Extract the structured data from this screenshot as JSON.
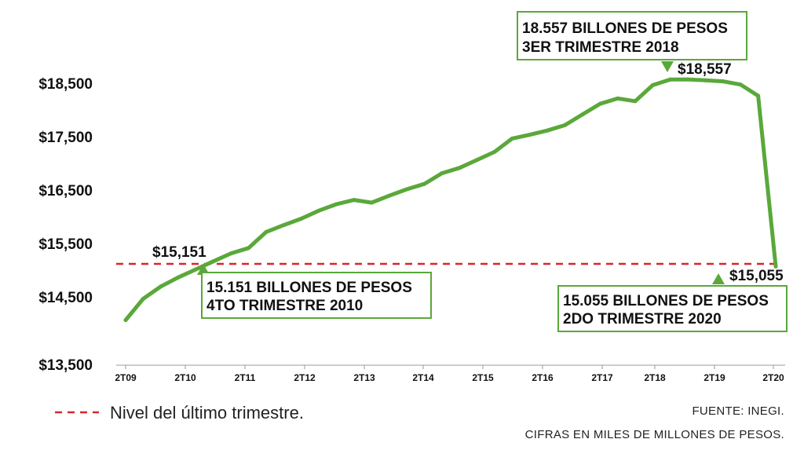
{
  "chart_data": {
    "type": "line",
    "colors": {
      "series": "#5aa83a",
      "reference_line": "#d9262b",
      "box_border": "#5aa83a"
    },
    "y_ticks": [
      "$18,500",
      "$17,500",
      "$16,500",
      "$15,500",
      "$14,500",
      "$13,500"
    ],
    "y_tick_values": [
      18500,
      17500,
      16500,
      15500,
      14500,
      13500
    ],
    "ylim": [
      13500,
      18500
    ],
    "x_ticks": [
      "2T09",
      "2T10",
      "2T11",
      "2T12",
      "2T13",
      "2T14",
      "2T15",
      "2T16",
      "2T17",
      "2T18",
      "2T19",
      "2T20"
    ],
    "grid": false,
    "series": [
      {
        "values": [
          14050,
          14450,
          14680,
          14850,
          15000,
          15151,
          15300,
          15400,
          15700,
          15830,
          15950,
          16100,
          16220,
          16300,
          16250,
          16380,
          16500,
          16600,
          16800,
          16900,
          17050,
          17200,
          17450,
          17520,
          17600,
          17700,
          17900,
          18100,
          18200,
          18150,
          18450,
          18555,
          18557,
          18540,
          18520,
          18460,
          18250,
          15055
        ]
      }
    ],
    "reference_line": {
      "value": 15055,
      "legend": "Nivel del último trimestre."
    },
    "annotations": [
      {
        "value_label": "$15,151",
        "line1": "15.151 BILLONES DE PESOS",
        "line2": "4TO TRIMESTRE 2010"
      },
      {
        "value_label": "$18,557",
        "line1": "18.557 BILLONES DE PESOS",
        "line2": "3ER TRIMESTRE 2018"
      },
      {
        "value_label": "$15,055",
        "line1": "15.055 BILLONES DE PESOS",
        "line2": "2DO TRIMESTRE 2020"
      }
    ]
  },
  "footer": {
    "source": "FUENTE: INEGI.",
    "units": "CIFRAS EN MILES DE MILLONES DE PESOS."
  }
}
